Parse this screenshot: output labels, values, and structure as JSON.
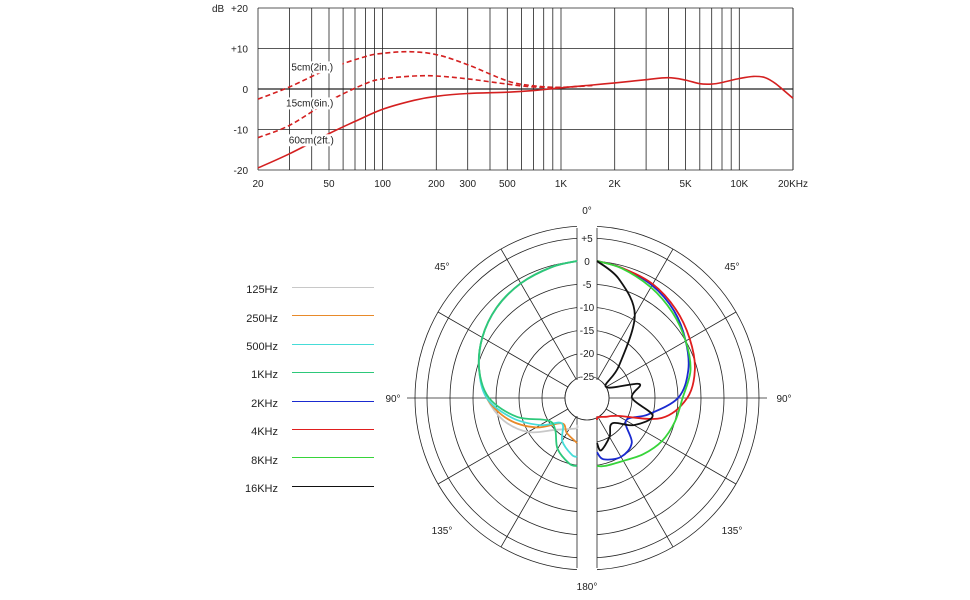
{
  "chart_data": [
    {
      "type": "line",
      "xscale": "log",
      "xlim": [
        20,
        20000
      ],
      "ylim": [
        -20,
        20
      ],
      "y_unit_label": "dB",
      "y_ticks": [
        "+20",
        "+10",
        "0",
        "-10",
        "-20"
      ],
      "y_tick_values": [
        20,
        10,
        0,
        -10,
        -20
      ],
      "x_ticks": [
        "20",
        "50",
        "100",
        "200",
        "300",
        "500",
        "1K",
        "2K",
        "5K",
        "10K",
        "20KHz"
      ],
      "x_tick_values": [
        20,
        50,
        100,
        200,
        300,
        500,
        1000,
        2000,
        5000,
        10000,
        20000
      ],
      "grid": true,
      "series": [
        {
          "name": "5cm(2in.)",
          "style": "dashed",
          "color": "#d42020",
          "x": [
            20,
            30,
            50,
            80,
            100,
            140,
            200,
            300,
            500,
            700,
            1000,
            1500
          ],
          "y": [
            -2.5,
            0.5,
            5,
            8,
            8.8,
            9.2,
            8.5,
            6,
            2,
            0.8,
            0.4,
            0.9
          ]
        },
        {
          "name": "15cm(6in.)",
          "style": "dashed",
          "color": "#d42020",
          "x": [
            20,
            30,
            50,
            80,
            100,
            150,
            200,
            300,
            500,
            700,
            1000,
            1500
          ],
          "y": [
            -12,
            -9,
            -3,
            1.3,
            2.5,
            3.2,
            3.2,
            2.5,
            1.2,
            0.5,
            0.4,
            0.9
          ]
        },
        {
          "name": "60cm(2ft.)",
          "style": "solid",
          "color": "#d42020",
          "x": [
            20,
            30,
            50,
            70,
            100,
            150,
            200,
            300,
            500,
            700,
            1000,
            1500,
            2000,
            3000,
            4000,
            5000,
            6000,
            7000,
            8000,
            10000,
            12000,
            14000,
            16000,
            20000
          ],
          "y": [
            -19.5,
            -16,
            -11,
            -8,
            -5,
            -2.8,
            -1.8,
            -1.1,
            -0.8,
            -0.4,
            0.3,
            1.0,
            1.5,
            2.3,
            2.8,
            2.2,
            1.3,
            1.2,
            1.6,
            2.6,
            3.1,
            2.8,
            1.3,
            -2.3
          ]
        }
      ]
    },
    {
      "type": "polar",
      "r_range_db": [
        -25,
        5
      ],
      "r_ticks": [
        "+5",
        "0",
        "-5",
        "-10",
        "-15",
        "-20",
        "-25"
      ],
      "r_tick_values": [
        5,
        0,
        -5,
        -10,
        -15,
        -20,
        -25
      ],
      "angle_labels": {
        "a0": "0°",
        "a45l": "45°",
        "a45r": "45°",
        "a90l": "90°",
        "a90r": "90°",
        "a135l": "135°",
        "a135r": "135°",
        "a180": "180°"
      },
      "angles_deg": [
        0,
        15,
        30,
        45,
        60,
        75,
        90,
        105,
        120,
        135,
        150,
        165,
        180
      ],
      "legend": [
        {
          "label": "125Hz",
          "color": "#c8c8c8"
        },
        {
          "label": "250Hz",
          "color": "#e88a2a"
        },
        {
          "label": "500Hz",
          "color": "#46dcd8"
        },
        {
          "label": "1KHz",
          "color": "#2dc87a"
        },
        {
          "label": "2KHz",
          "color": "#1a2ad0"
        },
        {
          "label": "4KHz",
          "color": "#e01e1e"
        },
        {
          "label": "8KHz",
          "color": "#37d43a"
        },
        {
          "label": "16KHz",
          "color": "#111111"
        }
      ],
      "series": [
        {
          "name": "125Hz",
          "side": "left",
          "color": "#c8c8c8",
          "values": [
            0,
            -0.3,
            -1,
            -2,
            -3.5,
            -5.5,
            -8,
            -11,
            -15,
            -20,
            -22,
            -23,
            -24
          ]
        },
        {
          "name": "250Hz",
          "side": "left",
          "color": "#e88a2a",
          "values": [
            0,
            -0.3,
            -1,
            -2,
            -3.5,
            -5.5,
            -8,
            -12,
            -17,
            -22,
            -21,
            -20,
            -20
          ]
        },
        {
          "name": "500Hz",
          "side": "left",
          "color": "#46dcd8",
          "values": [
            0,
            -0.3,
            -1,
            -2,
            -3.5,
            -5.5,
            -8,
            -13,
            -18,
            -22,
            -19,
            -17,
            -17
          ]
        },
        {
          "name": "1KHz",
          "side": "left",
          "color": "#2dc87a",
          "values": [
            0,
            -0.3,
            -1,
            -2,
            -3.5,
            -5.5,
            -8.5,
            -14,
            -20,
            -20,
            -17,
            -15,
            -15
          ]
        },
        {
          "name": "2KHz",
          "side": "right",
          "color": "#1a2ad0",
          "values": [
            0,
            -0.5,
            -1.5,
            -3,
            -5,
            -7,
            -10,
            -16,
            -20,
            -16,
            -15,
            -16,
            -18
          ]
        },
        {
          "name": "4KHz",
          "side": "right",
          "color": "#e01e1e",
          "values": [
            0,
            -0.5,
            -1.2,
            -2.5,
            -4,
            -5.5,
            -8,
            -13,
            -22,
            -24,
            -25,
            -25,
            -25
          ]
        },
        {
          "name": "8KHz",
          "side": "right",
          "color": "#37d43a",
          "values": [
            0,
            -0.6,
            -2,
            -3.5,
            -5,
            -6.5,
            -9,
            -10,
            -11,
            -12.5,
            -14,
            -14.5,
            -15
          ]
        },
        {
          "name": "16KHz",
          "side": "right",
          "color": "#111111",
          "values": [
            0,
            -3,
            -9,
            -20,
            -25,
            -18,
            -20,
            -15,
            -18,
            -22,
            -20,
            -18,
            -20
          ]
        }
      ]
    }
  ]
}
